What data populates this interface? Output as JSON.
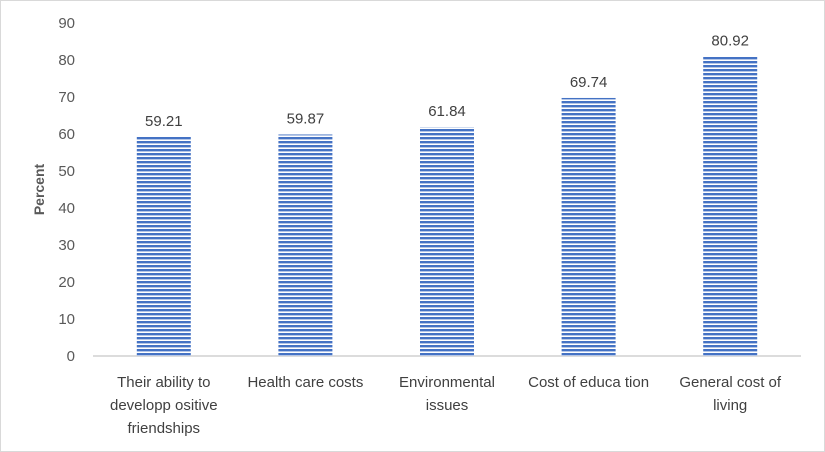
{
  "chart_data": {
    "type": "bar",
    "categories": [
      [
        "Their ability to",
        "developp ositive",
        "friendships"
      ],
      [
        "Health care costs"
      ],
      [
        "Environmental",
        "issues"
      ],
      [
        "Cost of educa tion"
      ],
      [
        "General cost of",
        "living"
      ]
    ],
    "values": [
      59.21,
      59.87,
      61.84,
      69.74,
      80.92
    ],
    "value_labels": [
      "59.21",
      "59.87",
      "61.84",
      "69.74",
      "80.92"
    ],
    "title": "",
    "xlabel": "",
    "ylabel": "Percent",
    "ylim": [
      0,
      90
    ],
    "yticks": [
      0,
      10,
      20,
      30,
      40,
      50,
      60,
      70,
      80,
      90
    ],
    "grid": false,
    "legend": "none",
    "bar_color": "#4472c4",
    "bar_pattern": "horizontal-stripes"
  }
}
